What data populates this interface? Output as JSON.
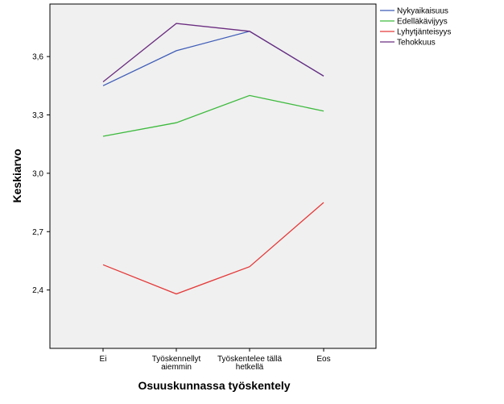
{
  "chart_data": {
    "type": "line",
    "categories": [
      [
        "Ei"
      ],
      [
        "Työskennellyt",
        "aiemmin"
      ],
      [
        "Työskentelee tällä",
        "hetkellä"
      ],
      [
        "Eos"
      ]
    ],
    "series": [
      {
        "name": "Nykyaikaisuus",
        "color": "#3f5db8",
        "values": [
          3.45,
          3.63,
          3.73,
          3.5
        ]
      },
      {
        "name": "Edelläkävijyys",
        "color": "#3dba3d",
        "values": [
          3.19,
          3.26,
          3.4,
          3.32
        ]
      },
      {
        "name": "Lyhytjänteisyys",
        "color": "#e53a3a",
        "values": [
          2.53,
          2.38,
          2.52,
          2.85
        ]
      },
      {
        "name": "Tehokkuus",
        "color": "#6b2d80",
        "values": [
          3.47,
          3.77,
          3.73,
          3.5
        ]
      }
    ],
    "xlabel": "Osuuskunnassa työskentely",
    "ylabel": "Keskiarvo",
    "yticks": [
      "2,4",
      "2,7",
      "3,0",
      "3,3",
      "3,6"
    ],
    "ytick_values": [
      2.4,
      2.7,
      3.0,
      3.3,
      3.6
    ],
    "ylim": [
      2.1,
      3.87
    ],
    "legend_position": "top-right"
  }
}
